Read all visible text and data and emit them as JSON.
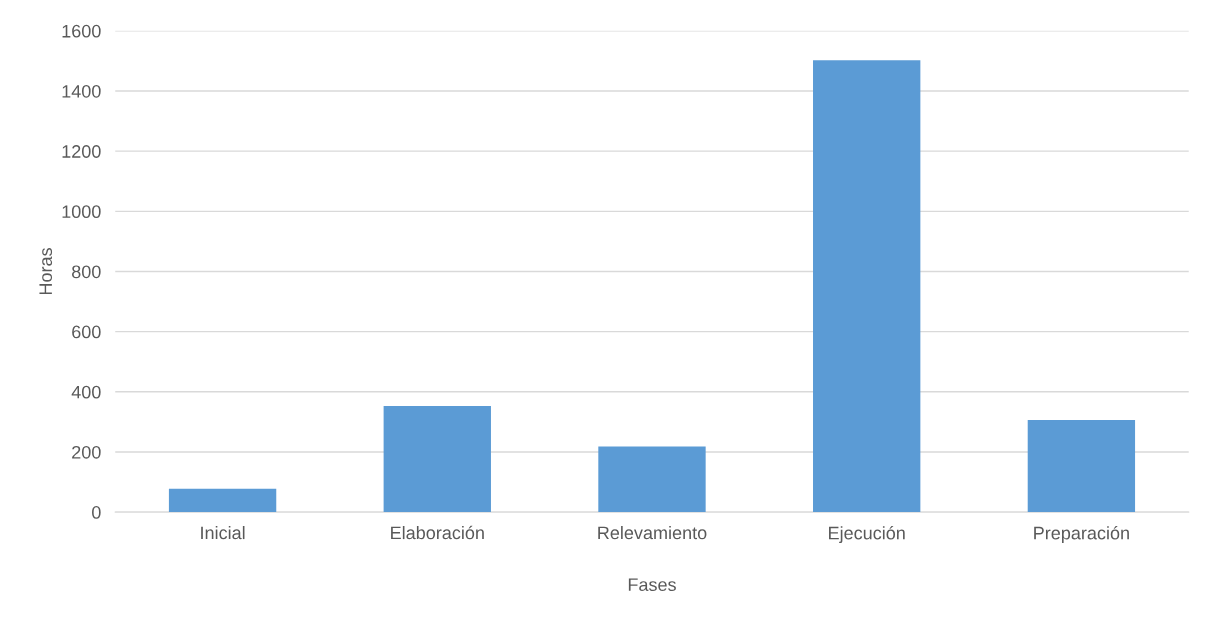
{
  "chart_data": {
    "type": "bar",
    "xlabel": "Fases",
    "ylabel": "Horas",
    "categories": [
      "Inicial",
      "Elaboración",
      "Relevamiento",
      "Ejecución",
      "Preparación"
    ],
    "values": [
      78,
      353,
      218,
      1502,
      306
    ],
    "color": "#5b9bd5",
    "ylim": [
      0,
      1600
    ],
    "yticks": [
      0,
      200,
      400,
      600,
      800,
      1000,
      1200,
      1400,
      1600
    ],
    "grid": "y",
    "legend": false
  }
}
